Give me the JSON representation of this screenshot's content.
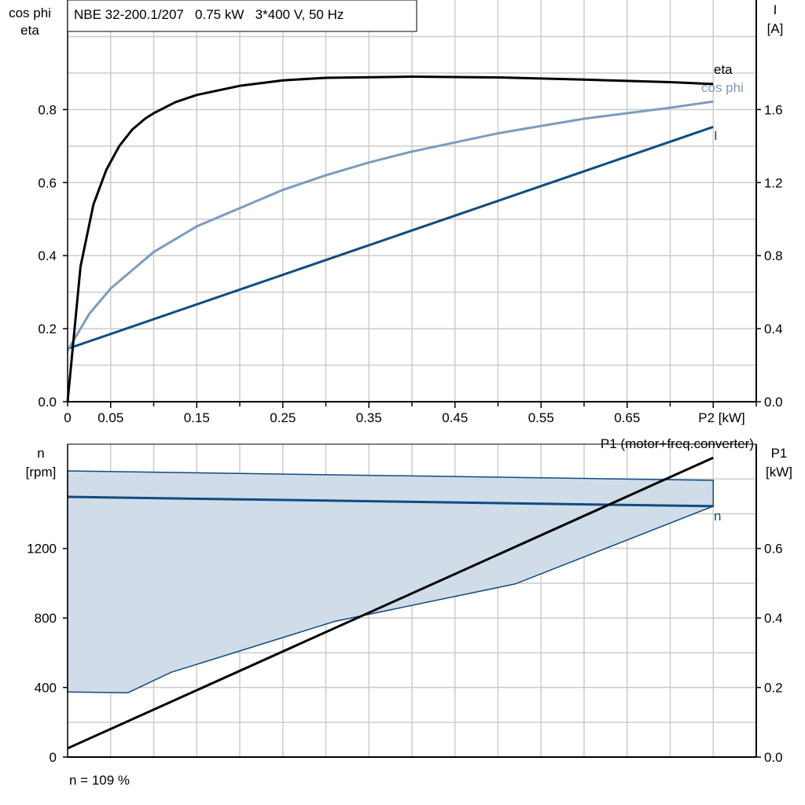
{
  "chart_data": [
    {
      "type": "line",
      "title": "NBE 32-200.1/207   0.75 kW   3*400 V, 50 Hz",
      "xlabel": "P2 [kW]",
      "ylabel_left": [
        "cos phi",
        "eta"
      ],
      "ylabel_right": [
        "I",
        "[A]"
      ],
      "xlim": [
        0,
        0.8
      ],
      "ylim_left": [
        0,
        1.1
      ],
      "ylim_right": [
        0,
        2.2
      ],
      "x_ticks": [
        "0",
        "0.05",
        "0.15",
        "0.25",
        "0.35",
        "0.45",
        "0.55",
        "0.65"
      ],
      "x_tick_values": [
        0,
        0.05,
        0.15,
        0.25,
        0.35,
        0.45,
        0.55,
        0.65
      ],
      "y_ticks_left": [
        "0.0",
        "0.2",
        "0.4",
        "0.6",
        "0.8"
      ],
      "y_ticks_right": [
        "0.0",
        "0.4",
        "0.8",
        "1.2",
        "1.6"
      ],
      "grid": true,
      "series": [
        {
          "name": "eta",
          "axis": "left",
          "color": "#000000",
          "x": [
            0,
            0.015,
            0.03,
            0.045,
            0.06,
            0.075,
            0.09,
            0.1,
            0.125,
            0.15,
            0.2,
            0.25,
            0.3,
            0.4,
            0.5,
            0.6,
            0.7,
            0.75
          ],
          "y": [
            0,
            0.37,
            0.54,
            0.635,
            0.7,
            0.745,
            0.775,
            0.79,
            0.82,
            0.84,
            0.865,
            0.88,
            0.887,
            0.89,
            0.888,
            0.882,
            0.875,
            0.87
          ]
        },
        {
          "name": "cos phi",
          "axis": "left",
          "color": "#7a9cc0",
          "x": [
            0,
            0.025,
            0.05,
            0.1,
            0.15,
            0.2,
            0.25,
            0.3,
            0.35,
            0.4,
            0.45,
            0.5,
            0.55,
            0.6,
            0.65,
            0.7,
            0.75
          ],
          "y": [
            0.14,
            0.24,
            0.31,
            0.41,
            0.48,
            0.53,
            0.58,
            0.62,
            0.655,
            0.685,
            0.71,
            0.735,
            0.755,
            0.775,
            0.79,
            0.805,
            0.822
          ]
        },
        {
          "name": "I",
          "axis": "right",
          "color": "#0f4c81",
          "x": [
            0,
            0.75
          ],
          "y": [
            0.29,
            1.505
          ]
        }
      ]
    },
    {
      "type": "line",
      "ylabel_left": [
        "n",
        "[rpm]"
      ],
      "ylabel_right": [
        "P1",
        "[kW]"
      ],
      "xlim": [
        0,
        0.8
      ],
      "ylim_left": [
        0,
        1800
      ],
      "ylim_right": [
        0,
        0.9
      ],
      "y_ticks_left": [
        "0",
        "400",
        "800",
        "1200"
      ],
      "y_ticks_right": [
        "0.0",
        "0.2",
        "0.4",
        "0.6"
      ],
      "grid": true,
      "range_fill_color": "#d0dce8",
      "range_upper": {
        "x": [
          0,
          0.75
        ],
        "y": [
          1646,
          1592
        ]
      },
      "range_lower": {
        "x": [
          0,
          0.07,
          0.12,
          0.31,
          0.52,
          0.75
        ],
        "y": [
          374,
          370,
          487,
          780,
          996,
          1443
        ]
      },
      "series": [
        {
          "name": "n",
          "axis": "left",
          "color": "#0f4c81",
          "x": [
            0,
            0.75
          ],
          "y": [
            1497,
            1443
          ]
        },
        {
          "name": "P1 (motor+freq.converter)",
          "axis": "right",
          "color": "#000000",
          "x": [
            0,
            0.75
          ],
          "y": [
            0.025,
            0.861
          ]
        }
      ],
      "footnote": "n = 109 %"
    }
  ]
}
